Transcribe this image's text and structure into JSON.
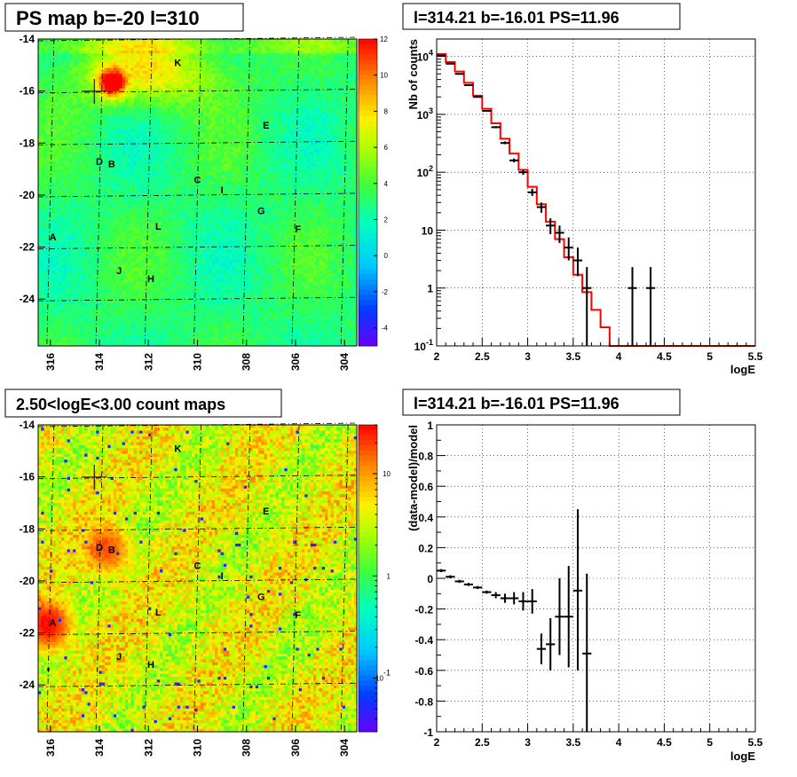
{
  "chart_data": [
    {
      "id": "ps_map",
      "type": "heatmap",
      "title": "PS map b=-20 l=310",
      "xlim": [
        316.5,
        303.5
      ],
      "ylim": [
        -25.8,
        -14
      ],
      "x_ticks": [
        "316",
        "314",
        "312",
        "310",
        "308",
        "306",
        "304"
      ],
      "x_tick_values": [
        316,
        314,
        312,
        310,
        308,
        306,
        304
      ],
      "y_ticks": [
        "-14",
        "-16",
        "-18",
        "-20",
        "-22",
        "-24"
      ],
      "y_tick_values": [
        -14,
        -16,
        -18,
        -20,
        -22,
        -24
      ],
      "color_scale": {
        "min": -5,
        "max": 12,
        "labels": [
          "12",
          "10",
          "8",
          "6",
          "4",
          "2",
          "0",
          "-2",
          "-4"
        ],
        "label_values": [
          12,
          10,
          8,
          6,
          4,
          2,
          0,
          -2,
          -4
        ],
        "log": false
      },
      "marker": {
        "l": 314.21,
        "b": -16.01
      },
      "hot_spots": [
        {
          "l": 313.5,
          "b": -15.7,
          "v": 10
        }
      ],
      "sources": [
        {
          "name": "K",
          "l": 310.8,
          "b": -14.9
        },
        {
          "name": "E",
          "l": 307.2,
          "b": -17.3
        },
        {
          "name": "D",
          "l": 314.0,
          "b": -18.7
        },
        {
          "name": "B",
          "l": 313.5,
          "b": -18.8
        },
        {
          "name": "C",
          "l": 310.0,
          "b": -19.4
        },
        {
          "name": "I",
          "l": 309.0,
          "b": -19.8
        },
        {
          "name": "G",
          "l": 307.4,
          "b": -20.6
        },
        {
          "name": "F",
          "l": 305.9,
          "b": -21.3
        },
        {
          "name": "L",
          "l": 311.6,
          "b": -21.2
        },
        {
          "name": "A",
          "l": 315.9,
          "b": -21.6
        },
        {
          "name": "J",
          "l": 313.2,
          "b": -22.9
        },
        {
          "name": "H",
          "l": 311.9,
          "b": -23.2
        }
      ]
    },
    {
      "id": "spectrum",
      "type": "line",
      "title": "l=314.21 b=-16.01 PS=11.96",
      "xlabel": "logE",
      "ylabel": "Nb of counts",
      "xlim": [
        2,
        5.5
      ],
      "ylim": [
        0.1,
        20000
      ],
      "y_log": true,
      "x_ticks": [
        "2",
        "2.5",
        "3",
        "3.5",
        "4",
        "4.5",
        "5",
        "5.5"
      ],
      "x_tick_values": [
        2,
        2.5,
        3,
        3.5,
        4,
        4.5,
        5,
        5.5
      ],
      "y_ticks": [
        {
          "value": 10000,
          "base": "10",
          "exp": "4"
        },
        {
          "value": 1000,
          "base": "10",
          "exp": "3"
        },
        {
          "value": 100,
          "base": "10",
          "exp": "2"
        },
        {
          "value": 10,
          "base": "10",
          "exp": ""
        },
        {
          "value": 1,
          "base": "1",
          "exp": ""
        },
        {
          "value": 0.1,
          "base": "10",
          "exp": "-1"
        }
      ],
      "model": {
        "bin_width": 0.1,
        "bin_start": [
          2.0,
          2.1,
          2.2,
          2.3,
          2.4,
          2.5,
          2.6,
          2.7,
          2.8,
          2.9,
          3.0,
          3.1,
          3.2,
          3.3,
          3.4,
          3.5,
          3.6,
          3.7,
          3.8,
          3.9,
          4.0,
          4.1,
          4.2,
          4.3,
          4.4,
          4.5,
          4.6,
          4.7,
          4.8,
          4.9,
          5.0,
          5.1,
          5.2,
          5.3,
          5.4
        ],
        "values": [
          11000,
          8000,
          5500,
          3500,
          2100,
          1250,
          700,
          380,
          210,
          110,
          56,
          28,
          14,
          7,
          3.4,
          1.7,
          0.85,
          0.42,
          0.21,
          0.1,
          0.1,
          0.1,
          0.1,
          0.1,
          0.1,
          0.1,
          0.1,
          0.1,
          0.1,
          0.1,
          0.1,
          0.1,
          0.1,
          0.1,
          0.1
        ]
      },
      "data": {
        "x": [
          2.05,
          2.15,
          2.25,
          2.35,
          2.45,
          2.55,
          2.65,
          2.75,
          2.85,
          2.95,
          3.05,
          3.15,
          3.25,
          3.35,
          3.45,
          3.55,
          3.65,
          4.15,
          4.35
        ],
        "y": [
          10500,
          7500,
          5000,
          3200,
          2000,
          1150,
          600,
          320,
          160,
          100,
          45,
          25,
          12,
          9,
          5,
          3,
          1,
          1,
          1
        ],
        "lo": [
          10300,
          7350,
          4900,
          3150,
          1950,
          1110,
          575,
          305,
          148,
          90,
          39,
          20,
          8.5,
          6,
          3,
          1.6,
          0.1,
          0.1,
          0.1
        ],
        "hi": [
          10700,
          7650,
          5100,
          3260,
          2050,
          1190,
          625,
          340,
          173,
          110,
          52,
          30,
          16,
          12,
          7.5,
          5,
          2.3,
          2.3,
          2.3
        ]
      }
    },
    {
      "id": "count_map",
      "type": "heatmap",
      "title": "2.50<logE<3.00 count maps",
      "xlim": [
        316.5,
        303.5
      ],
      "ylim": [
        -25.8,
        -14
      ],
      "x_ticks": [
        "316",
        "314",
        "312",
        "310",
        "308",
        "306",
        "304"
      ],
      "x_tick_values": [
        316,
        314,
        312,
        310,
        308,
        306,
        304
      ],
      "y_ticks": [
        "-14",
        "-16",
        "-18",
        "-20",
        "-22",
        "-24"
      ],
      "y_tick_values": [
        -14,
        -16,
        -18,
        -20,
        -22,
        -24
      ],
      "color_scale": {
        "min": 0.03,
        "max": 30,
        "log": true,
        "labels": [
          {
            "base": "10",
            "exp": "",
            "value": 10
          },
          {
            "base": "1",
            "exp": "",
            "value": 1
          },
          {
            "base": "10",
            "exp": "-1",
            "value": 0.1
          }
        ]
      },
      "marker": {
        "l": 314.21,
        "b": -16.01
      },
      "hot_spots": [
        {
          "l": 316.1,
          "b": -21.7,
          "v": 25
        },
        {
          "l": 313.7,
          "b": -18.8,
          "v": 15
        }
      ],
      "sources": [
        {
          "name": "K",
          "l": 310.8,
          "b": -14.9
        },
        {
          "name": "E",
          "l": 307.2,
          "b": -17.3
        },
        {
          "name": "D",
          "l": 314.0,
          "b": -18.7
        },
        {
          "name": "B",
          "l": 313.5,
          "b": -18.8
        },
        {
          "name": "C",
          "l": 310.0,
          "b": -19.4
        },
        {
          "name": "I",
          "l": 309.0,
          "b": -19.8
        },
        {
          "name": "G",
          "l": 307.4,
          "b": -20.6
        },
        {
          "name": "F",
          "l": 305.9,
          "b": -21.3
        },
        {
          "name": "L",
          "l": 311.6,
          "b": -21.2
        },
        {
          "name": "A",
          "l": 315.9,
          "b": -21.6
        },
        {
          "name": "J",
          "l": 313.2,
          "b": -22.9
        },
        {
          "name": "H",
          "l": 311.9,
          "b": -23.2
        }
      ]
    },
    {
      "id": "residual",
      "type": "scatter",
      "title": "l=314.21 b=-16.01 PS=11.96",
      "xlabel": "logE",
      "ylabel": "(data-model)/model",
      "xlim": [
        2,
        5.5
      ],
      "ylim": [
        -1,
        1
      ],
      "x_ticks": [
        "2",
        "2.5",
        "3",
        "3.5",
        "4",
        "4.5",
        "5",
        "5.5"
      ],
      "x_tick_values": [
        2,
        2.5,
        3,
        3.5,
        4,
        4.5,
        5,
        5.5
      ],
      "y_ticks": [
        "1",
        "0.8",
        "0.6",
        "0.4",
        "0.2",
        "0",
        "-0.2",
        "-0.4",
        "-0.6",
        "-0.8",
        "-1"
      ],
      "y_tick_values": [
        1,
        0.8,
        0.6,
        0.4,
        0.2,
        0,
        -0.2,
        -0.4,
        -0.6,
        -0.8,
        -1
      ],
      "data": {
        "x": [
          2.05,
          2.15,
          2.25,
          2.35,
          2.45,
          2.55,
          2.65,
          2.75,
          2.85,
          2.95,
          3.05,
          3.15,
          3.25,
          3.35,
          3.45,
          3.55,
          3.65
        ],
        "y": [
          0.05,
          0.01,
          -0.02,
          -0.04,
          -0.06,
          -0.09,
          -0.11,
          -0.13,
          -0.13,
          -0.15,
          -0.15,
          -0.46,
          -0.43,
          -0.25,
          -0.25,
          -0.08,
          -0.49
        ],
        "lo": [
          0.04,
          0.0,
          -0.03,
          -0.05,
          -0.07,
          -0.1,
          -0.13,
          -0.16,
          -0.17,
          -0.21,
          -0.23,
          -0.56,
          -0.6,
          -0.5,
          -0.58,
          -0.6,
          -1.0
        ],
        "hi": [
          0.06,
          0.02,
          -0.01,
          -0.03,
          -0.05,
          -0.08,
          -0.09,
          -0.1,
          -0.09,
          -0.09,
          -0.07,
          -0.36,
          -0.26,
          0.0,
          0.08,
          0.45,
          0.03
        ]
      }
    }
  ]
}
